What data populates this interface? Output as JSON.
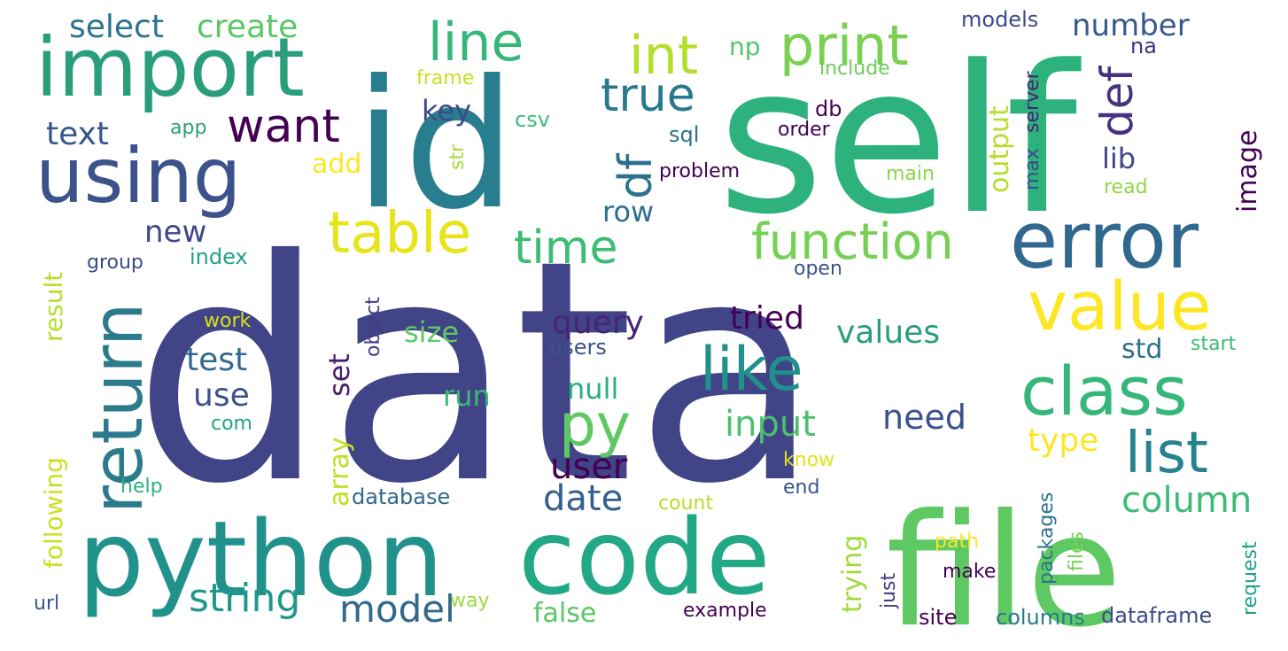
{
  "words": [
    {
      "text": "data",
      "color": "#414487"
    },
    {
      "text": "self",
      "color": "#2db27d"
    },
    {
      "text": "id",
      "color": "#287d8e"
    },
    {
      "text": "python",
      "color": "#21918c"
    },
    {
      "text": "code",
      "color": "#22a884"
    },
    {
      "text": "file",
      "color": "#5ec962"
    },
    {
      "text": "import",
      "color": "#2a9e7c"
    },
    {
      "text": "using",
      "color": "#3b528b"
    },
    {
      "text": "return",
      "color": "#2b7b8c"
    },
    {
      "text": "error",
      "color": "#31688e"
    },
    {
      "text": "value",
      "color": "#fde725"
    },
    {
      "text": "class",
      "color": "#35b779"
    },
    {
      "text": "table",
      "color": "#e7e419"
    },
    {
      "text": "function",
      "color": "#75d054"
    },
    {
      "text": "print",
      "color": "#7ad151"
    },
    {
      "text": "line",
      "color": "#35b779"
    },
    {
      "text": "int",
      "color": "#b5de2b"
    },
    {
      "text": "like",
      "color": "#21918c"
    },
    {
      "text": "list",
      "color": "#26828e"
    },
    {
      "text": "py",
      "color": "#5ec962"
    },
    {
      "text": "want",
      "color": "#440154"
    },
    {
      "text": "true",
      "color": "#2a788e"
    },
    {
      "text": "time",
      "color": "#3dbc74"
    },
    {
      "text": "df",
      "color": "#2c728e"
    },
    {
      "text": "def",
      "color": "#46327e"
    },
    {
      "text": "string",
      "color": "#1f988b"
    },
    {
      "text": "model",
      "color": "#31688e"
    },
    {
      "text": "column",
      "color": "#3cbb75"
    },
    {
      "text": "date",
      "color": "#355f8d"
    },
    {
      "text": "user",
      "color": "#440154"
    },
    {
      "text": "input",
      "color": "#4ac16d"
    },
    {
      "text": "need",
      "color": "#3b528b"
    },
    {
      "text": "tried",
      "color": "#440154"
    },
    {
      "text": "values",
      "color": "#2a9e7c"
    },
    {
      "text": "query",
      "color": "#482475"
    },
    {
      "text": "test",
      "color": "#31688e"
    },
    {
      "text": "use",
      "color": "#3b528b"
    },
    {
      "text": "type",
      "color": "#fde725"
    },
    {
      "text": "text",
      "color": "#39568c"
    },
    {
      "text": "select",
      "color": "#2c728e"
    },
    {
      "text": "create",
      "color": "#58c765"
    },
    {
      "text": "number",
      "color": "#38598c"
    },
    {
      "text": "new",
      "color": "#404688"
    },
    {
      "text": "key",
      "color": "#3e4989"
    },
    {
      "text": "row",
      "color": "#2d708e"
    },
    {
      "text": "null",
      "color": "#29af7f"
    },
    {
      "text": "run",
      "color": "#3aba76"
    },
    {
      "text": "size",
      "color": "#5ec962"
    },
    {
      "text": "set",
      "color": "#481f70"
    },
    {
      "text": "output",
      "color": "#b5de2b"
    },
    {
      "text": "lib",
      "color": "#414487"
    },
    {
      "text": "image",
      "color": "#440154"
    },
    {
      "text": "array",
      "color": "#c2df23"
    },
    {
      "text": "trying",
      "color": "#a0da39"
    },
    {
      "text": "false",
      "color": "#58c765"
    },
    {
      "text": "add",
      "color": "#fde725"
    },
    {
      "text": "result",
      "color": "#b5de2b"
    },
    {
      "text": "following",
      "color": "#cae11f"
    },
    {
      "text": "std",
      "color": "#2e6e8e"
    },
    {
      "text": "np",
      "color": "#52c569"
    },
    {
      "text": "models",
      "color": "#3e4989"
    },
    {
      "text": "na",
      "color": "#46327e"
    },
    {
      "text": "include",
      "color": "#6ccd5a"
    },
    {
      "text": "frame",
      "color": "#c8e020"
    },
    {
      "text": "csv",
      "color": "#3dbc74"
    },
    {
      "text": "app",
      "color": "#2a9e7c"
    },
    {
      "text": "sql",
      "color": "#2c728e"
    },
    {
      "text": "problem",
      "color": "#440154"
    },
    {
      "text": "str",
      "color": "#a8db34"
    },
    {
      "text": "server",
      "color": "#482475"
    },
    {
      "text": "max",
      "color": "#3e4989"
    },
    {
      "text": "db",
      "color": "#440154"
    },
    {
      "text": "order",
      "color": "#440154"
    },
    {
      "text": "main",
      "color": "#8bd646"
    },
    {
      "text": "read",
      "color": "#90d743"
    },
    {
      "text": "group",
      "color": "#3e4989"
    },
    {
      "text": "index",
      "color": "#20a386"
    },
    {
      "text": "open",
      "color": "#3b528b"
    },
    {
      "text": "object",
      "color": "#443a83"
    },
    {
      "text": "work",
      "color": "#d8e219"
    },
    {
      "text": "users",
      "color": "#3b528b"
    },
    {
      "text": "start",
      "color": "#3cbb75"
    },
    {
      "text": "com",
      "color": "#20a386"
    },
    {
      "text": "help",
      "color": "#2db27d"
    },
    {
      "text": "database",
      "color": "#31688e"
    },
    {
      "text": "count",
      "color": "#b8de29"
    },
    {
      "text": "know",
      "color": "#dfe318"
    },
    {
      "text": "end",
      "color": "#3b528b"
    },
    {
      "text": "packages",
      "color": "#2c728e"
    },
    {
      "text": "files",
      "color": "#75d054"
    },
    {
      "text": "request",
      "color": "#1fa187"
    },
    {
      "text": "path",
      "color": "#fde725"
    },
    {
      "text": "just",
      "color": "#443983"
    },
    {
      "text": "make",
      "color": "#440154"
    },
    {
      "text": "way",
      "color": "#9bd93c"
    },
    {
      "text": "url",
      "color": "#39568c"
    },
    {
      "text": "example",
      "color": "#440154"
    },
    {
      "text": "site",
      "color": "#440154"
    },
    {
      "text": "columns",
      "color": "#2a788e"
    },
    {
      "text": "dataframe",
      "color": "#3e4989"
    }
  ]
}
